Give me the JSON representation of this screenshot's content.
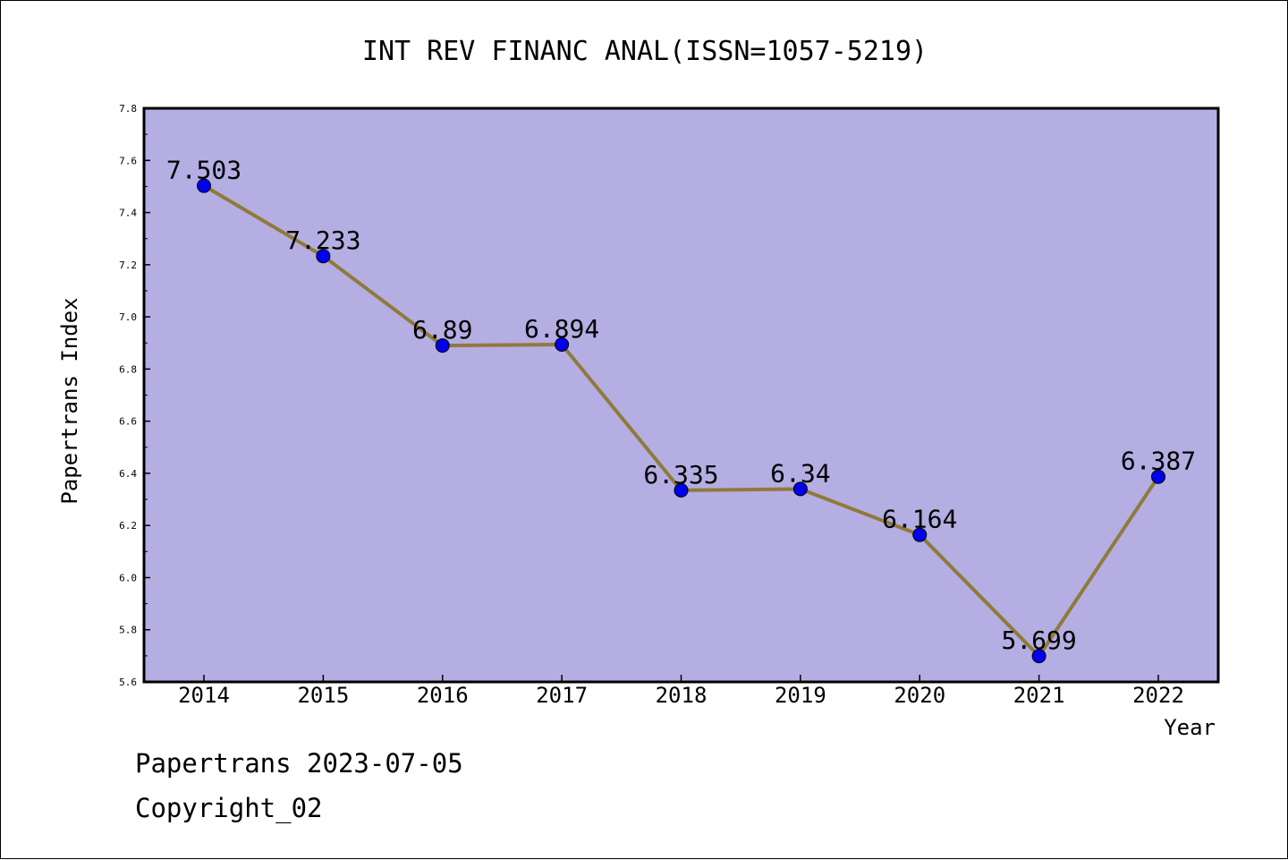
{
  "chart_data": {
    "type": "line",
    "title": "INT REV FINANC ANAL(ISSN=1057-5219)",
    "xlabel": "Year",
    "ylabel": "Papertrans Index",
    "categories": [
      "2014",
      "2015",
      "2016",
      "2017",
      "2018",
      "2019",
      "2020",
      "2021",
      "2022"
    ],
    "values": [
      7.503,
      7.233,
      6.89,
      6.894,
      6.335,
      6.34,
      6.164,
      5.699,
      6.387
    ],
    "data_labels": [
      "7.503",
      "7.233",
      "6.89",
      "6.894",
      "6.335",
      "6.34",
      "6.164",
      "5.699",
      "6.387"
    ],
    "ylim": [
      5.6,
      7.8
    ],
    "yticks": [
      "5.6",
      "5.8",
      "6.0",
      "6.2",
      "6.4",
      "6.6",
      "6.8",
      "7.0",
      "7.2",
      "7.4",
      "7.6",
      "7.8"
    ],
    "grid": false,
    "colors": {
      "plot_background": "#b4aee2",
      "line": "#8f7a3a",
      "marker": "#0000ee"
    }
  },
  "footer": {
    "line1": "Papertrans 2023-07-05",
    "line2": "Copyright_02"
  }
}
